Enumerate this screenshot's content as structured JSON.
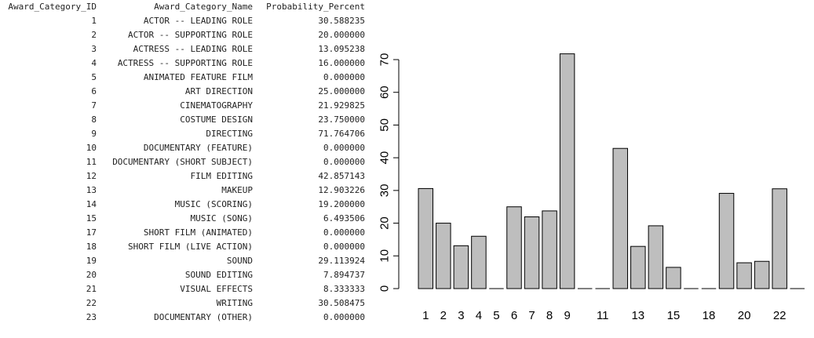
{
  "table": {
    "headers": [
      "Award_Category_ID",
      "Award_Category_Name",
      "Probability_Percent"
    ],
    "rows": [
      [
        "1",
        "ACTOR -- LEADING ROLE",
        "30.588235"
      ],
      [
        "2",
        "ACTOR -- SUPPORTING ROLE",
        "20.000000"
      ],
      [
        "3",
        "ACTRESS -- LEADING ROLE",
        "13.095238"
      ],
      [
        "4",
        "ACTRESS -- SUPPORTING ROLE",
        "16.000000"
      ],
      [
        "5",
        "ANIMATED FEATURE FILM",
        "0.000000"
      ],
      [
        "6",
        "ART DIRECTION",
        "25.000000"
      ],
      [
        "7",
        "CINEMATOGRAPHY",
        "21.929825"
      ],
      [
        "8",
        "COSTUME DESIGN",
        "23.750000"
      ],
      [
        "9",
        "DIRECTING",
        "71.764706"
      ],
      [
        "10",
        "DOCUMENTARY (FEATURE)",
        "0.000000"
      ],
      [
        "11",
        "DOCUMENTARY (SHORT SUBJECT)",
        "0.000000"
      ],
      [
        "12",
        "FILM EDITING",
        "42.857143"
      ],
      [
        "13",
        "MAKEUP",
        "12.903226"
      ],
      [
        "14",
        "MUSIC (SCORING)",
        "19.200000"
      ],
      [
        "15",
        "MUSIC (SONG)",
        "6.493506"
      ],
      [
        "17",
        "SHORT FILM (ANIMATED)",
        "0.000000"
      ],
      [
        "18",
        "SHORT FILM (LIVE ACTION)",
        "0.000000"
      ],
      [
        "19",
        "SOUND",
        "29.113924"
      ],
      [
        "20",
        "SOUND EDITING",
        "7.894737"
      ],
      [
        "21",
        "VISUAL EFFECTS",
        "8.333333"
      ],
      [
        "22",
        "WRITING",
        "30.508475"
      ],
      [
        "23",
        "DOCUMENTARY (OTHER)",
        "0.000000"
      ]
    ]
  },
  "colors": {
    "bar_fill": "#bebebe",
    "bar_stroke": "#000000"
  },
  "chart_data": {
    "type": "bar",
    "categories": [
      "1",
      "2",
      "3",
      "4",
      "5",
      "6",
      "7",
      "8",
      "9",
      "10",
      "11",
      "12",
      "13",
      "14",
      "15",
      "17",
      "18",
      "19",
      "20",
      "21",
      "22",
      "23"
    ],
    "values": [
      30.588235,
      20.0,
      13.095238,
      16.0,
      0.0,
      25.0,
      21.929825,
      23.75,
      71.764706,
      0.0,
      0.0,
      42.857143,
      12.903226,
      19.2,
      6.493506,
      0.0,
      0.0,
      29.113924,
      7.894737,
      8.333333,
      30.508475,
      0.0
    ],
    "shown_x_labels": [
      "1",
      "2",
      "3",
      "4",
      "5",
      "6",
      "7",
      "8",
      "9",
      "11",
      "13",
      "15",
      "18",
      "20",
      "22"
    ],
    "y_ticks": [
      0,
      10,
      20,
      30,
      40,
      50,
      60,
      70
    ],
    "ylim": [
      0,
      72
    ],
    "grid": false,
    "title": "",
    "xlabel": "",
    "ylabel": ""
  }
}
